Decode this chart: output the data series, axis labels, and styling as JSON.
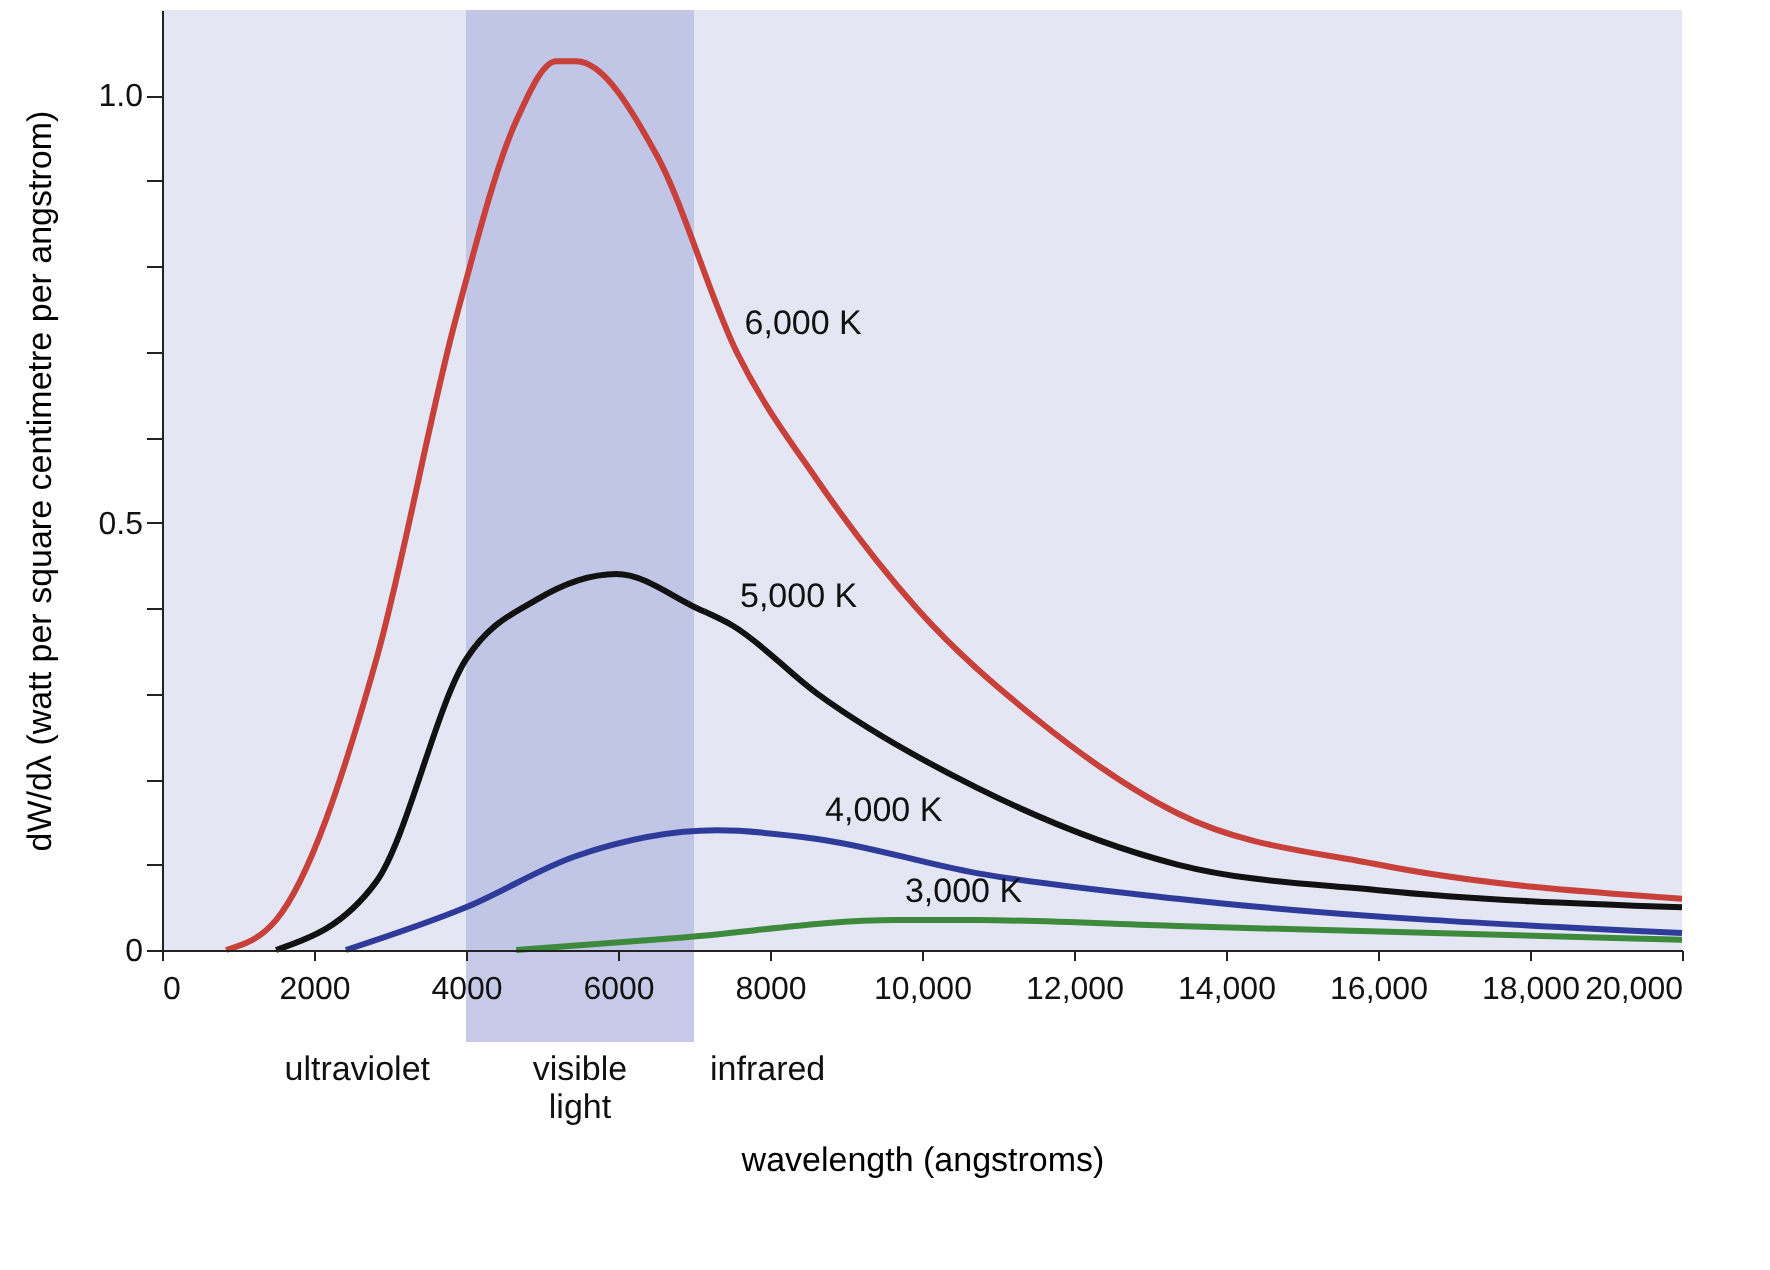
{
  "chart_data": {
    "type": "line",
    "xlabel": "wavelength (angstroms)",
    "ylabel": "dW/dλ (watt per square centimetre per angstrom)",
    "xlim": [
      0,
      20000
    ],
    "ylim": [
      0,
      1.1
    ],
    "xticks": [
      0,
      2000,
      4000,
      6000,
      8000,
      {
        "value": 10000,
        "label": "10,000"
      },
      {
        "value": 12000,
        "label": "12,000"
      },
      {
        "value": 14000,
        "label": "14,000"
      },
      {
        "value": 16000,
        "label": "16,000"
      },
      {
        "value": 18000,
        "label": "18,000"
      },
      {
        "value": 20000,
        "label": "20,000"
      }
    ],
    "yticks": [
      0,
      {
        "value": 0.1,
        "label": null
      },
      {
        "value": 0.2,
        "label": null
      },
      {
        "value": 0.3,
        "label": null
      },
      {
        "value": 0.4,
        "label": null
      },
      0.5,
      {
        "value": 0.6,
        "label": null
      },
      {
        "value": 0.7,
        "label": null
      },
      {
        "value": 0.8,
        "label": null
      },
      {
        "value": 0.9,
        "label": null
      },
      {
        "value": 1.0,
        "label": "1.0"
      }
    ],
    "grid": false,
    "bands": [
      {
        "axis": "x",
        "from": 4000,
        "to": 7000,
        "label": "visible light",
        "color": "#b8bde2"
      }
    ],
    "annotations": [
      "ultraviolet",
      "infrared"
    ],
    "series": [
      {
        "name": "6,000 K",
        "color": "#c8403a",
        "x": [
          843,
          1500,
          2820,
          3870,
          4660,
          5190,
          5450,
          6510,
          7560,
          8620,
          9930,
          11510,
          13360,
          16000,
          20000
        ],
        "values": [
          0,
          0.035,
          0.34,
          0.74,
          0.97,
          1.04,
          1.04,
          0.93,
          0.7,
          0.55,
          0.4,
          0.27,
          0.16,
          0.1,
          0.06
        ]
      },
      {
        "name": "5,000 K",
        "color": "#111111",
        "x": [
          1500,
          2820,
          4000,
          4930,
          5980,
          7040,
          7500,
          8620,
          10720,
          13360,
          16000,
          20000
        ],
        "values": [
          0,
          0.08,
          0.34,
          0.41,
          0.44,
          0.4,
          0.38,
          0.3,
          0.19,
          0.1,
          0.07,
          0.05
        ]
      },
      {
        "name": "4,000 K",
        "color": "#2f3b9a",
        "x": [
          2420,
          4000,
          5450,
          7300,
          8620,
          10720,
          13360,
          20000
        ],
        "values": [
          0,
          0.05,
          0.11,
          0.14,
          0.13,
          0.09,
          0.06,
          0.02
        ]
      },
      {
        "name": "3,000 K",
        "color": "#3d8a3d",
        "x": [
          4660,
          6770,
          9670,
          10720,
          13360,
          20000
        ],
        "values": [
          0,
          0.014,
          0.035,
          0.035,
          0.028,
          0.012
        ]
      }
    ]
  }
}
